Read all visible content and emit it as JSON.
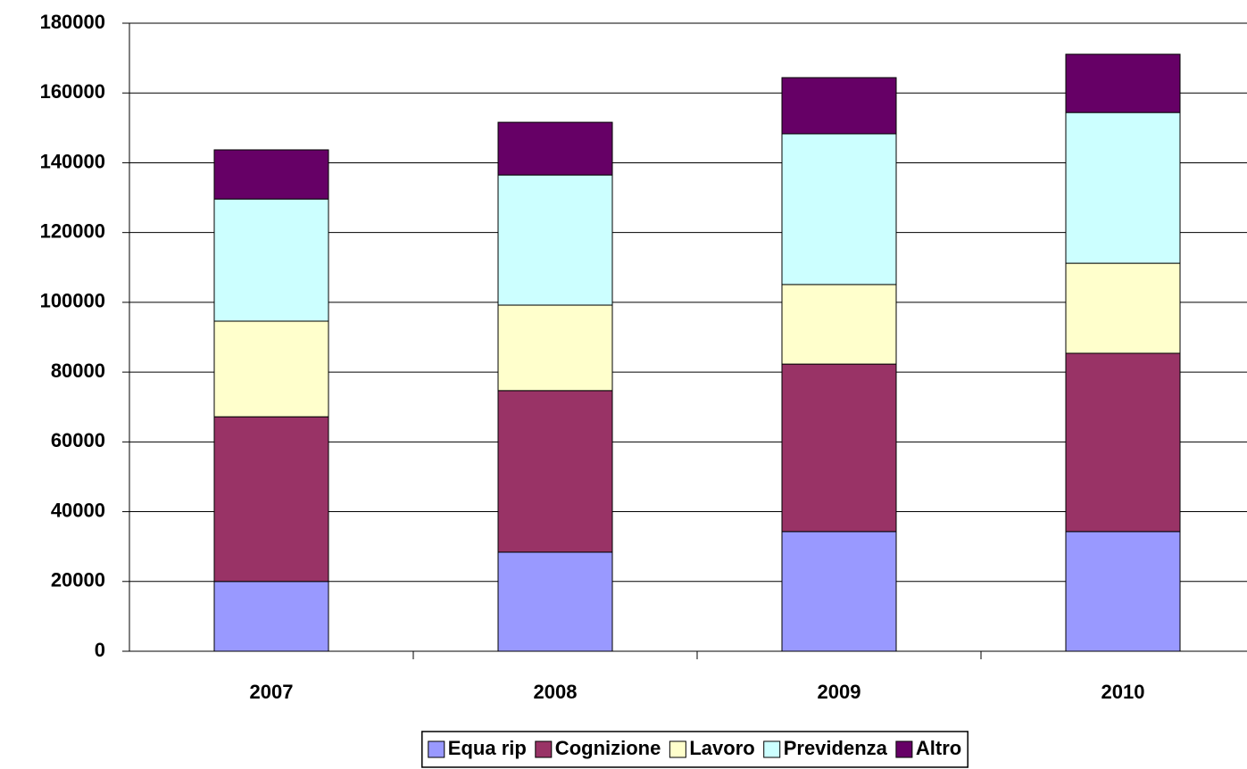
{
  "chart_data": {
    "type": "stacked_bar",
    "categories": [
      "2007",
      "2008",
      "2009",
      "2010"
    ],
    "series": [
      {
        "name": "Equa rip",
        "color": "#9999ff",
        "values": [
          20000,
          28400,
          34300,
          34300
        ]
      },
      {
        "name": "Cognizione",
        "color": "#993366",
        "values": [
          47200,
          46300,
          48000,
          51100
        ]
      },
      {
        "name": "Lavoro",
        "color": "#ffffcc",
        "values": [
          27400,
          24500,
          22800,
          25800
        ]
      },
      {
        "name": "Previdenza",
        "color": "#ccffff",
        "values": [
          35000,
          37300,
          43200,
          43200
        ]
      },
      {
        "name": "Altro",
        "color": "#660066",
        "values": [
          14100,
          15100,
          16100,
          16700
        ]
      }
    ],
    "ylim": [
      0,
      180000
    ],
    "yticks": [
      0,
      20000,
      40000,
      60000,
      80000,
      100000,
      120000,
      140000,
      160000,
      180000
    ],
    "grid": true,
    "legend": "bottom"
  }
}
